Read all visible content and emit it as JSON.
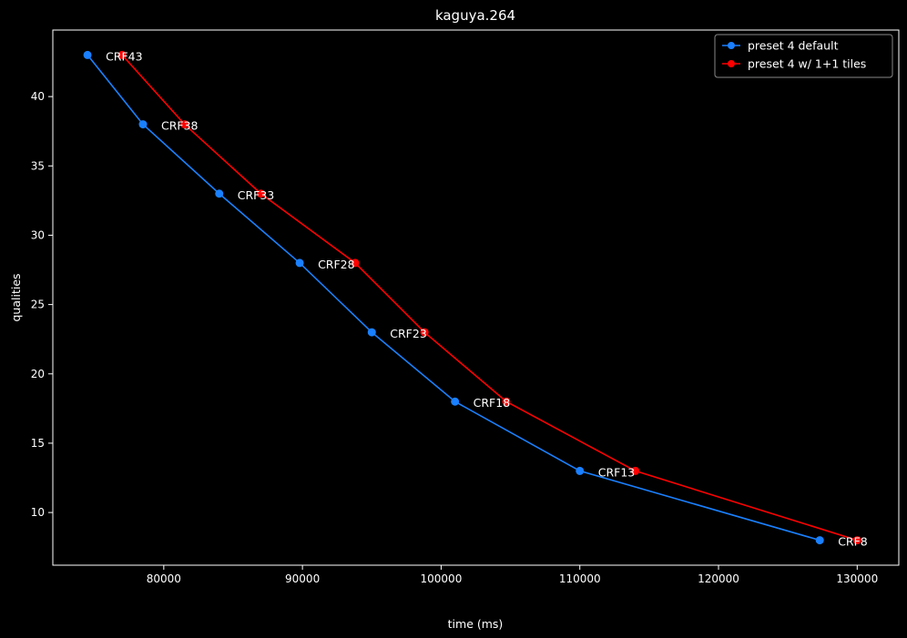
{
  "chart_data": {
    "type": "line",
    "title": "kaguya.264",
    "xlabel": "time (ms)",
    "ylabel": "qualities",
    "xlim": [
      72000,
      133000
    ],
    "ylim": [
      6.2,
      44.8
    ],
    "xticks": [
      80000,
      90000,
      100000,
      110000,
      120000,
      130000
    ],
    "yticks": [
      10,
      15,
      20,
      25,
      30,
      35,
      40
    ],
    "grid": false,
    "legend_position": "top-right",
    "series": [
      {
        "name": "preset 4 default",
        "color": "#1a80ff",
        "points": [
          {
            "x": 74500,
            "y": 43
          },
          {
            "x": 78500,
            "y": 38
          },
          {
            "x": 84000,
            "y": 33
          },
          {
            "x": 89800,
            "y": 28
          },
          {
            "x": 95000,
            "y": 23
          },
          {
            "x": 101000,
            "y": 18
          },
          {
            "x": 110000,
            "y": 13
          },
          {
            "x": 127300,
            "y": 8
          }
        ]
      },
      {
        "name": "preset 4 w/ 1+1 tiles",
        "color": "#ff0000",
        "points": [
          {
            "x": 77000,
            "y": 43
          },
          {
            "x": 81500,
            "y": 38
          },
          {
            "x": 87000,
            "y": 33
          },
          {
            "x": 93800,
            "y": 28
          },
          {
            "x": 98800,
            "y": 23
          },
          {
            "x": 104700,
            "y": 18
          },
          {
            "x": 114000,
            "y": 13
          },
          {
            "x": 130000,
            "y": 8
          }
        ]
      }
    ],
    "annotations": [
      {
        "text": "CRF43",
        "x": 74500,
        "y": 43
      },
      {
        "text": "CRF38",
        "x": 78500,
        "y": 38
      },
      {
        "text": "CRF33",
        "x": 84000,
        "y": 33
      },
      {
        "text": "CRF28",
        "x": 89800,
        "y": 28
      },
      {
        "text": "CRF23",
        "x": 95000,
        "y": 23
      },
      {
        "text": "CRF18",
        "x": 101000,
        "y": 18
      },
      {
        "text": "CRF13",
        "x": 110000,
        "y": 13
      },
      {
        "text": "CRF8",
        "x": 127300,
        "y": 8
      }
    ]
  }
}
